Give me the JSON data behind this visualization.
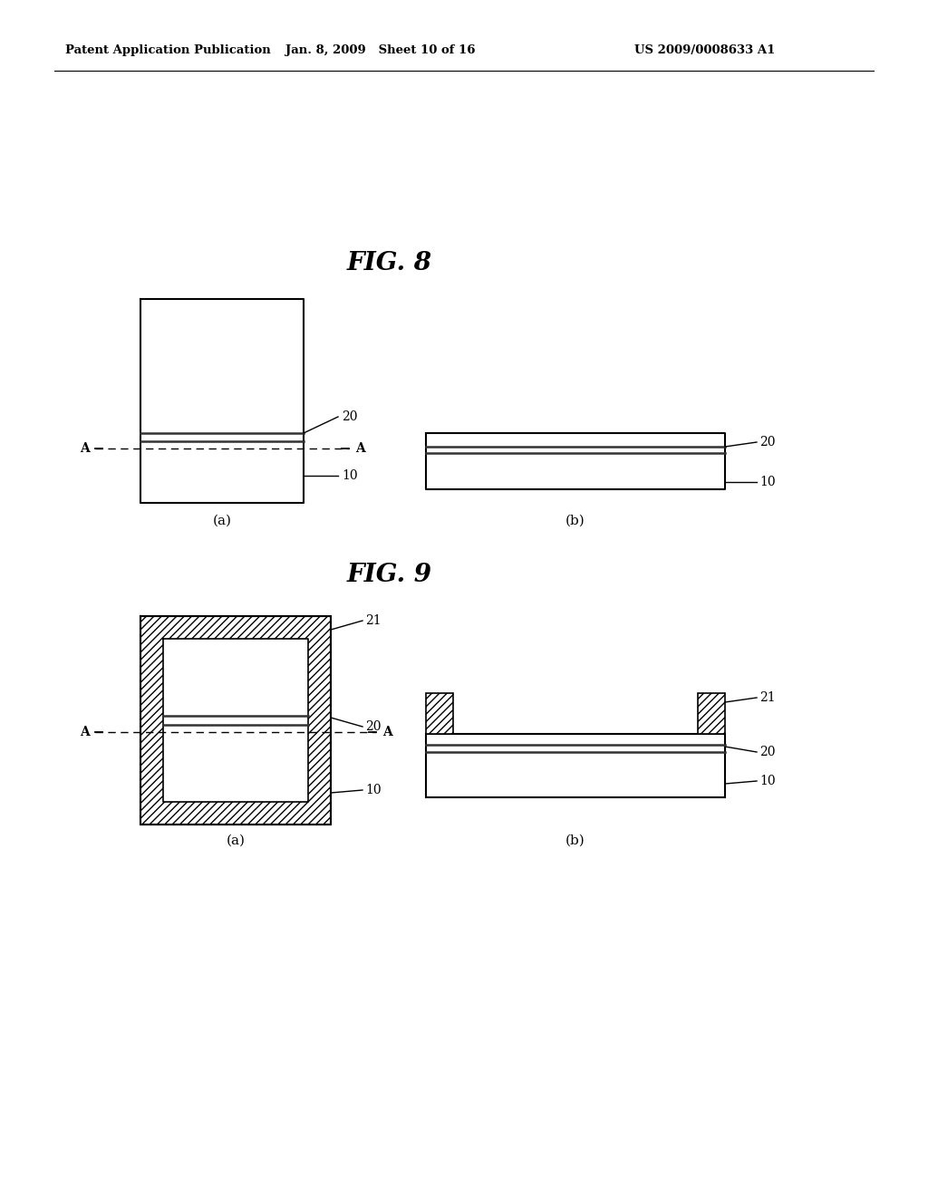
{
  "bg_color": "#ffffff",
  "header_left": "Patent Application Publication",
  "header_mid": "Jan. 8, 2009   Sheet 10 of 16",
  "header_right": "US 2009/0008633 A1",
  "fig8_title": "FIG. 8",
  "fig9_title": "FIG. 9",
  "label_a_sub": "(a)",
  "label_b_sub": "(b)"
}
